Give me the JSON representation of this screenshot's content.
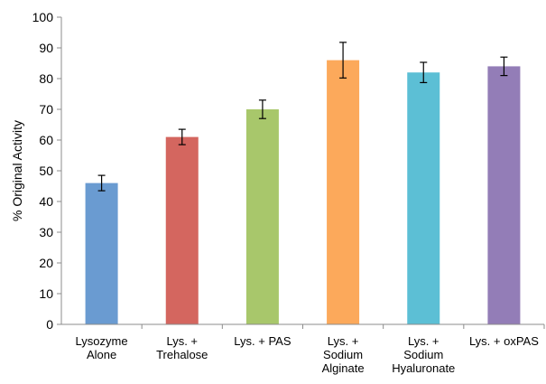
{
  "chart_data": {
    "type": "bar",
    "title": "",
    "xlabel": "",
    "ylabel": "% Original Activity",
    "ylim": [
      0,
      100
    ],
    "yticks": [
      0,
      10,
      20,
      30,
      40,
      50,
      60,
      70,
      80,
      90,
      100
    ],
    "grid": false,
    "legend": "none",
    "categories": [
      [
        "Lysozyme",
        "Alone"
      ],
      [
        "Lys. +",
        "Trehalose"
      ],
      [
        "Lys. + PAS"
      ],
      [
        "Lys. +",
        "Sodium",
        "Alginate"
      ],
      [
        "Lys. +",
        "Sodium",
        "Hyaluronate"
      ],
      [
        "Lys. + oxPAS"
      ]
    ],
    "values": [
      46,
      61,
      70,
      86,
      82,
      84
    ],
    "errors": [
      2.5,
      2.5,
      3,
      5.8,
      3.3,
      3
    ],
    "colors": [
      "#6a9bd1",
      "#d4665f",
      "#a8c76b",
      "#fca95b",
      "#5cbfd5",
      "#937db7"
    ]
  }
}
